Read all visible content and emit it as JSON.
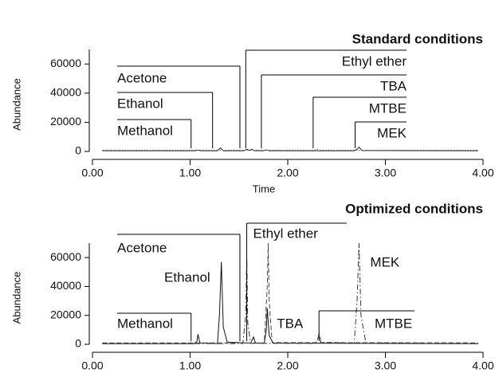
{
  "chart_data": [
    {
      "type": "line",
      "title": "Standard conditions",
      "xlabel": "Time",
      "ylabel": "Abundance",
      "xlim": [
        0,
        4
      ],
      "xticks": [
        {
          "value": 0,
          "label": "0.00"
        },
        {
          "value": 1,
          "label": "1.00"
        },
        {
          "value": 2,
          "label": "2.00"
        },
        {
          "value": 3,
          "label": "3.00"
        },
        {
          "value": 4,
          "label": "4.00"
        }
      ],
      "ylim": [
        0,
        70000
      ],
      "yticks": [
        0,
        20000,
        40000,
        60000
      ],
      "series": [
        {
          "color": "#222222",
          "dash": "solid",
          "x": [
            0.1,
            1.05,
            1.08,
            1.11,
            1.28,
            1.31,
            1.34,
            1.55,
            1.58,
            1.61,
            1.63,
            1.66,
            1.75,
            1.78,
            1.81,
            2.68,
            2.71,
            2.73,
            2.76,
            3.95
          ],
          "values": [
            500,
            500,
            900,
            500,
            500,
            2500,
            500,
            500,
            1500,
            700,
            1500,
            500,
            500,
            1000,
            500,
            500,
            1500,
            3000,
            600,
            500
          ]
        },
        {
          "color": "#555555",
          "dash": "dotted",
          "x": [
            0.1,
            2.27,
            2.3,
            2.33,
            3.95
          ],
          "values": [
            800,
            800,
            1500,
            800,
            800
          ]
        }
      ],
      "annotations": [
        {
          "text": "Acetone",
          "x": 1.51
        },
        {
          "text": "Ethanol",
          "x": 1.23
        },
        {
          "text": "Methanol",
          "x": 1.01
        },
        {
          "text": "Ethyl ether",
          "x": 1.57
        },
        {
          "text": "TBA",
          "x": 1.73
        },
        {
          "text": "MTBE",
          "x": 2.26
        },
        {
          "text": "MEK",
          "x": 2.69
        }
      ]
    },
    {
      "type": "line",
      "title": "Optimized conditions",
      "ylabel": "Abundance",
      "xlim": [
        0,
        4
      ],
      "xticks": [
        {
          "value": 0,
          "label": "0.00"
        },
        {
          "value": 1,
          "label": "1.00"
        },
        {
          "value": 2,
          "label": "2.00"
        },
        {
          "value": 3,
          "label": "3.00"
        },
        {
          "value": 4,
          "label": "4.00"
        }
      ],
      "ylim": [
        0,
        70000
      ],
      "yticks": [
        0,
        20000,
        40000,
        60000
      ],
      "series": [
        {
          "color": "#111111",
          "dash": "solid",
          "x": [
            0.1,
            1.04,
            1.07,
            1.08,
            1.1,
            1.28,
            1.3,
            1.32,
            1.34,
            1.38,
            1.62,
            1.65,
            1.67,
            1.76,
            1.78,
            1.79,
            1.81,
            1.85,
            3.95
          ],
          "values": [
            400,
            400,
            2000,
            7000,
            1000,
            500,
            20000,
            57000,
            12000,
            1500,
            800,
            5000,
            800,
            800,
            10000,
            25000,
            6000,
            800,
            400
          ]
        },
        {
          "color": "#333333",
          "dash": "dashdot",
          "x": [
            0.1,
            1.54,
            1.57,
            1.58,
            1.59,
            1.62,
            2.28,
            2.31,
            2.32,
            2.34,
            2.68,
            2.71,
            2.73,
            2.75,
            2.8,
            3.95
          ],
          "values": [
            500,
            500,
            20000,
            60000,
            15000,
            600,
            600,
            4000,
            8000,
            1500,
            600,
            30000,
            70000,
            20000,
            1000,
            500
          ]
        },
        {
          "color": "#444444",
          "dash": "dashed",
          "x": [
            0.1,
            1.76,
            1.79,
            1.8,
            1.81,
            1.84,
            3.95
          ],
          "values": [
            1000,
            1000,
            40000,
            70000,
            30000,
            1200,
            1000
          ]
        }
      ],
      "annotations": [
        {
          "text": "Acetone",
          "x": 1.51
        },
        {
          "text": "Ethyl ether",
          "x": 1.58
        },
        {
          "text": "Ethanol",
          "x": 1.32
        },
        {
          "text": "MEK",
          "x": 2.73
        },
        {
          "text": "Methanol",
          "x": 1.01
        },
        {
          "text": "TBA",
          "x": 1.79
        },
        {
          "text": "MTBE",
          "x": 2.32
        }
      ]
    }
  ]
}
